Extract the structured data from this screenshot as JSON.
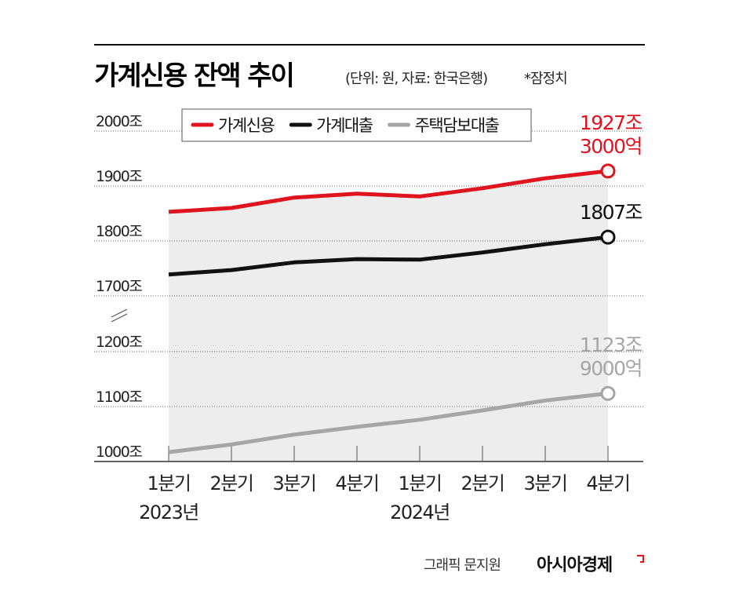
{
  "chart_data": {
    "type": "line",
    "title": "가계신용 잔액 추이",
    "subtitle": "(단위: 원, 자료: 한국은행)",
    "note": "*잠정치",
    "credit": "그래픽 문지원",
    "source_brand": "아시아경제",
    "categories": [
      "1분기",
      "2분기",
      "3분기",
      "4분기",
      "1분기",
      "2분기",
      "3분기",
      "4분기"
    ],
    "category_groups": [
      "2023년",
      null,
      null,
      null,
      "2024년",
      null,
      null,
      null
    ],
    "ylim": [
      [
        1000,
        1200
      ],
      [
        1700,
        2000
      ]
    ],
    "yticks": [
      {
        "value": 1000,
        "label": "1000조"
      },
      {
        "value": 1100,
        "label": "1100조"
      },
      {
        "value": 1200,
        "label": "1200조"
      },
      {
        "value": 1700,
        "label": "1700조"
      },
      {
        "value": 1800,
        "label": "1800조"
      },
      {
        "value": 1900,
        "label": "1900조"
      },
      {
        "value": 2000,
        "label": "2000조"
      }
    ],
    "grid": true,
    "series": [
      {
        "name": "가계신용",
        "color": "#e0141e",
        "values": [
          1853,
          1860,
          1879,
          1886,
          1881,
          1896,
          1914,
          1927.3
        ],
        "value_labels": [
          null,
          null,
          null,
          null,
          null,
          null,
          null,
          "1927조\n3000억"
        ]
      },
      {
        "name": "가계대출",
        "color": "#111111",
        "values": [
          1739,
          1747,
          1761,
          1767,
          1766,
          1779,
          1794,
          1807
        ],
        "value_labels": [
          null,
          null,
          null,
          null,
          null,
          null,
          null,
          "1807조"
        ]
      },
      {
        "name": "주택담보대출",
        "color": "#a6a6a6",
        "values": [
          1017,
          1031,
          1049,
          1063,
          1076,
          1093,
          1111,
          1123.9
        ],
        "value_labels": [
          null,
          null,
          null,
          null,
          null,
          null,
          null,
          "1123조\n9000억"
        ]
      }
    ]
  }
}
